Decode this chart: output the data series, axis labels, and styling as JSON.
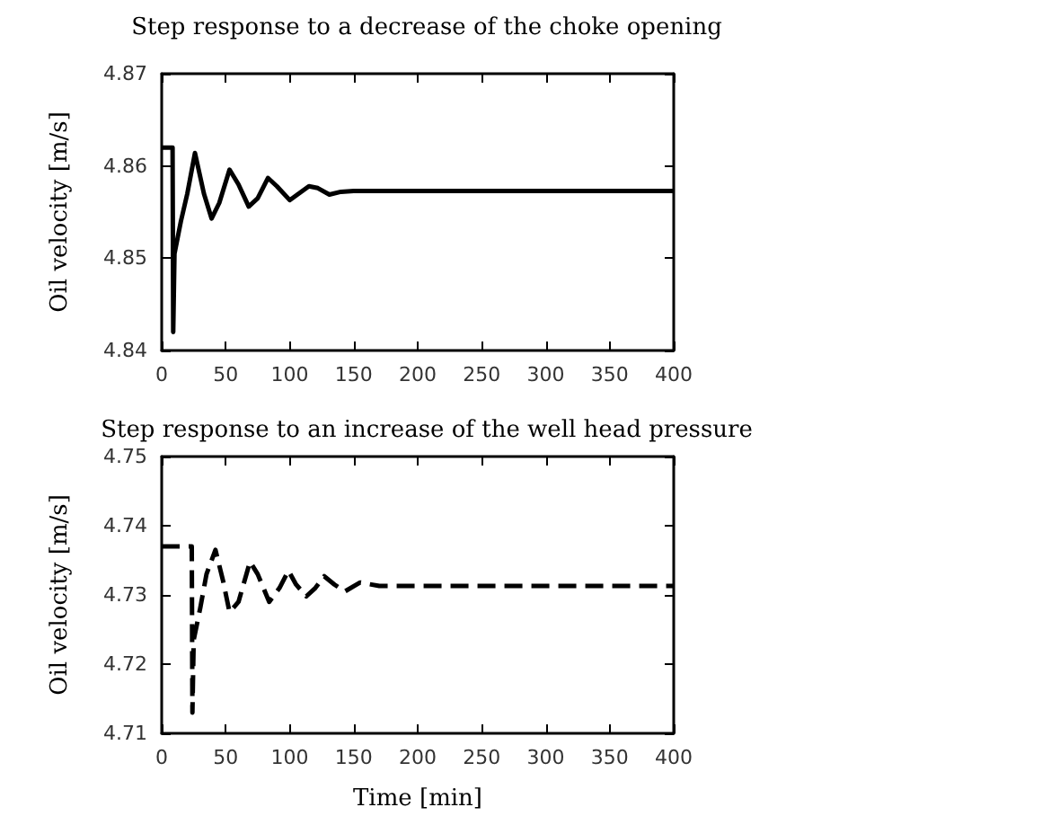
{
  "chart_data": [
    {
      "type": "line",
      "title": "Step response to a decrease of the choke opening",
      "ylabel": "Oil velocity [m/s]",
      "x": [
        0,
        8.5,
        9,
        10,
        15,
        20,
        26,
        33,
        39,
        45,
        53,
        60,
        68,
        75,
        83,
        90,
        100,
        107,
        115,
        122,
        131,
        140,
        150,
        200,
        300,
        400
      ],
      "series": [
        {
          "color": "#000000",
          "values": [
            4.862,
            4.862,
            4.842,
            4.8505,
            4.854,
            4.857,
            4.8614,
            4.857,
            4.8543,
            4.856,
            4.8596,
            4.858,
            4.8556,
            4.8565,
            4.8587,
            4.8578,
            4.8563,
            4.857,
            4.8578,
            4.8576,
            4.8569,
            4.8572,
            4.8573,
            4.8573,
            4.8573,
            4.8573
          ]
        }
      ],
      "xlim": [
        0,
        400
      ],
      "xticks": [
        0,
        50,
        100,
        150,
        200,
        250,
        300,
        350,
        400
      ],
      "ylim": [
        4.84,
        4.87
      ],
      "yticks": [
        4.84,
        4.85,
        4.86,
        4.87
      ],
      "grid": false,
      "line_style": "solid"
    },
    {
      "type": "line",
      "title": "Step response to an increase of the well head pressure",
      "xlabel": "Time [min]",
      "ylabel": "Oil velocity [m/s]",
      "x": [
        0,
        23.5,
        24,
        25,
        30,
        35,
        42,
        48,
        53,
        60,
        69,
        75,
        84,
        92,
        99,
        105,
        113,
        120,
        127,
        135,
        143,
        155,
        170,
        250,
        400
      ],
      "series": [
        {
          "color": "#000000",
          "values": [
            4.737,
            4.737,
            4.713,
            4.7235,
            4.728,
            4.733,
            4.7365,
            4.732,
            4.7275,
            4.729,
            4.7348,
            4.733,
            4.729,
            4.731,
            4.7335,
            4.7315,
            4.7298,
            4.731,
            4.7327,
            4.7315,
            4.7305,
            4.7318,
            4.7313,
            4.7313,
            4.7313
          ]
        }
      ],
      "xlim": [
        0,
        400
      ],
      "xticks": [
        0,
        50,
        100,
        150,
        200,
        250,
        300,
        350,
        400
      ],
      "ylim": [
        4.71,
        4.75
      ],
      "yticks": [
        4.71,
        4.72,
        4.73,
        4.74,
        4.75
      ],
      "grid": false,
      "line_style": "dashed"
    }
  ]
}
